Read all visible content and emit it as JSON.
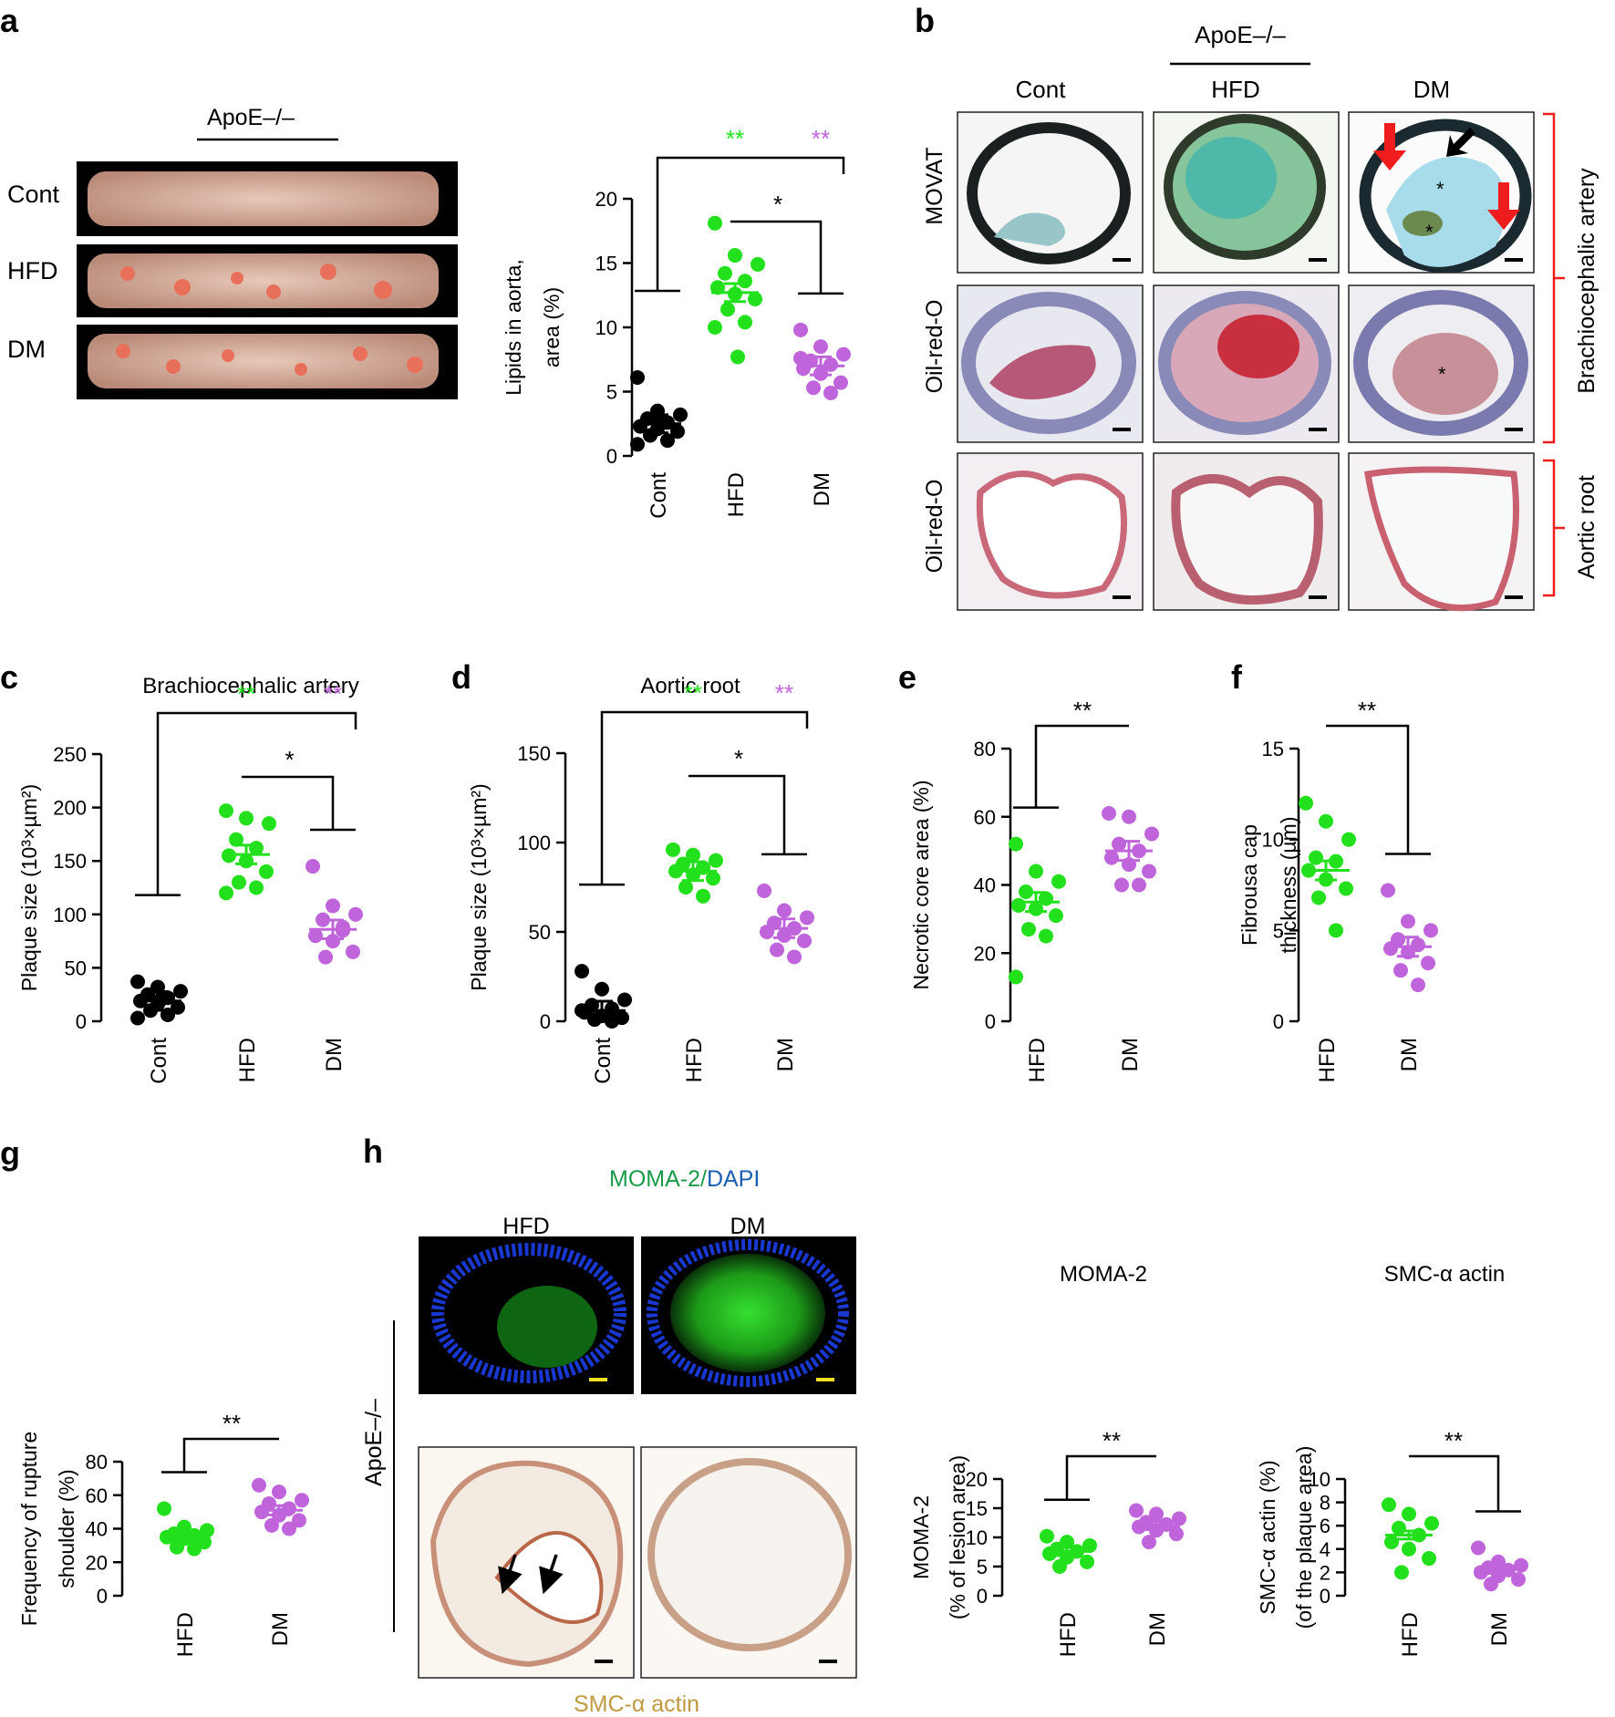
{
  "panels": {
    "a": {
      "letter": "a",
      "group_label": "ApoE–/–",
      "row_labels": [
        "Cont",
        "HFD",
        "DM"
      ]
    },
    "b": {
      "letter": "b",
      "group_label": "ApoE–/–",
      "col_labels": [
        "Cont",
        "HFD",
        "DM"
      ],
      "row_labels": [
        "MOVAT",
        "Oil-red-O",
        "Oil-red-O"
      ],
      "bracket_labels": [
        "Brachiocephalic artery",
        "Aortic root"
      ]
    },
    "h": {
      "letter": "h",
      "stain_label_green": "MOMA-2/",
      "stain_label_blue": "DAPI",
      "col_labels": [
        "HFD",
        "DM"
      ],
      "side_label": "ApoE–/–",
      "bottom_label": "SMC-α actin"
    }
  },
  "colors": {
    "cont": "#000000",
    "hfd": "#22e01c",
    "dm": "#c064dc",
    "red_arrow": "#ee1c1c"
  },
  "chart_data": [
    {
      "id": "a",
      "letter": "",
      "type": "scatter",
      "title": "",
      "ylabel": [
        "Lipids in aorta,",
        "area (%)"
      ],
      "categories": [
        "Cont",
        "HFD",
        "DM"
      ],
      "ylim": [
        0,
        20
      ],
      "yticks": [
        "0",
        "5",
        "10",
        "15",
        "20"
      ],
      "series": [
        {
          "group": "Cont",
          "values": [
            6.1,
            3.5,
            3.2,
            2.9,
            2.6,
            2.3,
            2.1,
            1.9,
            1.6,
            1.2,
            0.9,
            2.7
          ],
          "mean": 2.5
        },
        {
          "group": "HFD",
          "values": [
            18.1,
            15.6,
            14.9,
            14.2,
            13.6,
            13.1,
            12.6,
            12.2,
            11.4,
            10.4,
            10.0,
            7.7
          ],
          "mean": 12.7
        },
        {
          "group": "DM",
          "values": [
            9.8,
            8.5,
            7.9,
            7.4,
            7.1,
            6.8,
            6.4,
            5.7,
            5.3,
            4.9,
            7.6
          ],
          "mean": 7.0
        }
      ],
      "sig": [
        "**",
        "**",
        "*"
      ]
    },
    {
      "id": "c",
      "letter": "c",
      "type": "scatter",
      "title": "Brachiocephalic artery",
      "ylabel": [
        "Plaque size (10³×µm²)"
      ],
      "categories": [
        "Cont",
        "HFD",
        "DM"
      ],
      "ylim": [
        0,
        250
      ],
      "yticks": [
        "0",
        "50",
        "100",
        "150",
        "200",
        "250"
      ],
      "series": [
        {
          "group": "Cont",
          "values": [
            37,
            32,
            28,
            25,
            22,
            19,
            16,
            13,
            10,
            6,
            3,
            20
          ],
          "mean": 19
        },
        {
          "group": "HFD",
          "values": [
            197,
            190,
            185,
            170,
            162,
            155,
            150,
            140,
            130,
            125,
            120
          ],
          "mean": 156
        },
        {
          "group": "DM",
          "values": [
            145,
            108,
            100,
            95,
            88,
            80,
            75,
            65,
            60,
            85
          ],
          "mean": 86
        }
      ],
      "sig": [
        "**",
        "**",
        "*"
      ]
    },
    {
      "id": "d",
      "letter": "d",
      "type": "scatter",
      "title": "Aortic root",
      "ylabel": [
        "Plaque size (10³×µm²)"
      ],
      "categories": [
        "Cont",
        "HFD",
        "DM"
      ],
      "ylim": [
        0,
        150
      ],
      "yticks": [
        "0",
        "50",
        "100",
        "150"
      ],
      "series": [
        {
          "group": "Cont",
          "values": [
            28,
            18,
            12,
            9,
            7,
            5,
            3,
            2,
            1,
            0,
            6
          ],
          "mean": 6
        },
        {
          "group": "HFD",
          "values": [
            96,
            93,
            90,
            88,
            86,
            84,
            82,
            80,
            75,
            70
          ],
          "mean": 84
        },
        {
          "group": "DM",
          "values": [
            73,
            62,
            58,
            55,
            52,
            50,
            48,
            45,
            40,
            36
          ],
          "mean": 52
        }
      ],
      "sig": [
        "**",
        "**",
        "*"
      ]
    },
    {
      "id": "e",
      "letter": "e",
      "type": "scatter",
      "title": "",
      "ylabel": [
        "Necrotic core area (%)"
      ],
      "categories": [
        "HFD",
        "DM"
      ],
      "ylim": [
        0,
        80
      ],
      "yticks": [
        "0",
        "20",
        "40",
        "60",
        "80"
      ],
      "series": [
        {
          "group": "HFD",
          "values": [
            52,
            44,
            41,
            38,
            36,
            34,
            33,
            31,
            27,
            25,
            13
          ],
          "mean": 35
        },
        {
          "group": "DM",
          "values": [
            61,
            60,
            55,
            52,
            50,
            48,
            46,
            44,
            40,
            40
          ],
          "mean": 50
        }
      ],
      "sig": [
        "**"
      ]
    },
    {
      "id": "f",
      "letter": "f",
      "type": "scatter",
      "title": "",
      "ylabel": [
        "Fibrousa cap",
        "thickness (µm)"
      ],
      "categories": [
        "HFD",
        "DM"
      ],
      "ylim": [
        0,
        15
      ],
      "yticks": [
        "0",
        "5",
        "10",
        "15"
      ],
      "series": [
        {
          "group": "HFD",
          "values": [
            12,
            11,
            10,
            9,
            8.8,
            8.3,
            7.8,
            7.3,
            6.8,
            5.0
          ],
          "mean": 8.3
        },
        {
          "group": "DM",
          "values": [
            7.2,
            5.5,
            5.0,
            4.5,
            4.2,
            4.0,
            3.8,
            3.2,
            2.8,
            2.0
          ],
          "mean": 4.1
        }
      ],
      "sig": [
        "**"
      ]
    },
    {
      "id": "g",
      "letter": "g",
      "type": "scatter",
      "title": "",
      "ylabel": [
        "Frequency of rupture",
        "shoulder (%)"
      ],
      "categories": [
        "HFD",
        "DM"
      ],
      "ylim": [
        0,
        80
      ],
      "yticks": [
        "0",
        "20",
        "40",
        "60",
        "80"
      ],
      "series": [
        {
          "group": "HFD",
          "values": [
            52,
            41,
            39,
            37,
            36,
            35,
            34,
            32,
            29,
            28
          ],
          "mean": 36
        },
        {
          "group": "DM",
          "values": [
            66,
            62,
            57,
            55,
            52,
            50,
            48,
            45,
            42,
            40
          ],
          "mean": 51
        }
      ],
      "sig": [
        "**"
      ]
    },
    {
      "id": "h1",
      "letter": "",
      "type": "scatter",
      "title": "MOMA-2",
      "ylabel": [
        "MOMA-2",
        "(% of lesion area)"
      ],
      "categories": [
        "HFD",
        "DM"
      ],
      "ylim": [
        0,
        20
      ],
      "yticks": [
        "0",
        "5",
        "10",
        "15",
        "20"
      ],
      "series": [
        {
          "group": "HFD",
          "values": [
            10.2,
            9.2,
            8.6,
            8.0,
            7.6,
            7.2,
            6.6,
            5.8,
            5.0
          ],
          "mean": 7.6
        },
        {
          "group": "DM",
          "values": [
            14.6,
            14.0,
            13.2,
            12.6,
            12.2,
            11.8,
            11.2,
            10.6,
            9.2
          ],
          "mean": 12.0
        }
      ],
      "sig": [
        "**"
      ]
    },
    {
      "id": "h2",
      "letter": "",
      "type": "scatter",
      "title": "SMC-α actin",
      "ylabel": [
        "SMC-α actin (%)",
        "(of the plaque area)"
      ],
      "categories": [
        "HFD",
        "DM"
      ],
      "ylim": [
        0,
        10
      ],
      "yticks": [
        "0",
        "2",
        "4",
        "6",
        "8",
        "10"
      ],
      "series": [
        {
          "group": "HFD",
          "values": [
            7.8,
            7.0,
            6.2,
            5.8,
            5.2,
            4.6,
            4.0,
            3.2,
            2.0
          ],
          "mean": 5.2
        },
        {
          "group": "DM",
          "values": [
            4.1,
            2.9,
            2.6,
            2.4,
            2.2,
            2.0,
            1.7,
            1.4,
            1.0
          ],
          "mean": 2.3
        }
      ],
      "sig": [
        "**"
      ]
    }
  ]
}
